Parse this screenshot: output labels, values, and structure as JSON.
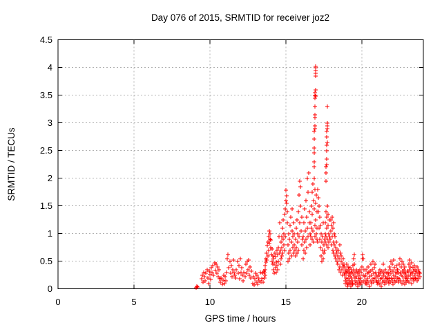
{
  "title": "Day 076 of 2015, SRMTID for receiver joz2",
  "colors": {
    "marker": "#ff0000",
    "grid": "#b0b0b0",
    "axis": "#000000",
    "background": "#ffffff"
  },
  "chart_data": {
    "type": "scatter",
    "title": "Day 076 of 2015, SRMTID for receiver joz2",
    "xlabel": "GPS time / hours",
    "ylabel": "SRMTID / TECUs",
    "xlim": [
      0,
      24.05
    ],
    "ylim": [
      0,
      4.5
    ],
    "x_ticks": [
      0,
      5,
      10,
      15,
      20
    ],
    "x_tick_labels": [
      "0",
      "5",
      "10",
      "15",
      "20"
    ],
    "y_ticks": [
      0,
      0.5,
      1,
      1.5,
      2,
      2.5,
      3,
      3.5,
      4,
      4.5
    ],
    "y_tick_labels": [
      "0",
      "0.5",
      "1",
      "1.5",
      "2",
      "2.5",
      "3",
      "3.5",
      "4",
      "4.5"
    ],
    "grid": true,
    "legend_position": "none",
    "marker": "plus",
    "marker_color": "#ff0000",
    "series_name": "SRMTID",
    "data_summary": {
      "time_range_hours": [
        9.1,
        23.85
      ],
      "quiet_band_level": 0.25,
      "main_peak": {
        "x": 16.95,
        "y": 4.0
      },
      "secondary_peak": {
        "x": 17.7,
        "y": 3.3
      }
    },
    "clusters": [
      {
        "x0": 9.1,
        "dx": 0.04,
        "y": [
          0.02,
          0.05,
          0.03
        ]
      },
      {
        "x0": 9.45,
        "dx": 0.05,
        "y": [
          0.18,
          0.25,
          0.12,
          0.3,
          0.22,
          0.15,
          0.28,
          0.35,
          0.2,
          0.1,
          0.32,
          0.26,
          0.17,
          0.38,
          0.3,
          0.42,
          0.25,
          0.47,
          0.33,
          0.45,
          0.28,
          0.4,
          0.22,
          0.35,
          0.18,
          0.12,
          0.2,
          0.08,
          0.16,
          0.25,
          0.1,
          0.22,
          0.15,
          0.3,
          0.55,
          0.62,
          0.38,
          0.5,
          0.28,
          0.42,
          0.22,
          0.35,
          0.52,
          0.3,
          0.25,
          0.2,
          0.35,
          0.5,
          0.28,
          0.42,
          0.18,
          0.55,
          0.3,
          0.38,
          0.25,
          0.15,
          0.3,
          0.22,
          0.45,
          0.28,
          0.5,
          0.35,
          0.52,
          0.25,
          0.4,
          0.2,
          0.32,
          0.1,
          0.22,
          0.07,
          0.18,
          0.28,
          0.12,
          0.25,
          0.08,
          0.2,
          0.15,
          0.3,
          0.12,
          0.18,
          0.28,
          0.12,
          0.32,
          0.2,
          0.25
        ]
      },
      {
        "x0": 13.6,
        "dx": 0.025,
        "y": [
          0.3,
          0.42,
          0.35,
          0.55,
          0.48,
          0.65,
          0.52,
          0.78,
          0.6,
          0.85,
          0.7,
          0.95,
          0.82,
          1.05,
          0.9,
          1.0,
          0.75,
          0.88,
          0.62,
          0.72,
          0.5,
          0.6,
          0.45
        ]
      },
      {
        "x0": 14.175,
        "dx": 0.025,
        "y": [
          0.35,
          0.55,
          0.28,
          0.45,
          0.65,
          0.38,
          0.58,
          0.3,
          0.48,
          0.7,
          0.42,
          0.62,
          0.35,
          0.75,
          0.5,
          0.95,
          0.65,
          1.2
        ]
      },
      {
        "x0": 14.62,
        "dx": 0.022,
        "y": [
          0.45,
          0.7,
          0.55,
          0.85,
          0.6,
          0.95,
          0.75,
          1.1,
          0.65,
          0.9,
          1.25,
          0.8,
          1.0,
          0.7,
          1.35,
          0.95,
          1.45,
          1.6,
          1.78,
          1.55,
          1.68,
          1.4,
          1.2
        ]
      },
      {
        "x0": 15.12,
        "dx": 0.025,
        "y": [
          0.5,
          0.8,
          0.65,
          1.0,
          0.55,
          0.9,
          1.15,
          0.7,
          1.3,
          0.85,
          0.6,
          1.05,
          1.45,
          0.75,
          0.95,
          0.65,
          1.2,
          0.8,
          1.0,
          0.7
        ]
      },
      {
        "x0": 15.62,
        "dx": 0.024,
        "y": [
          0.6,
          0.9,
          0.75,
          1.1,
          0.65,
          1.25,
          0.85,
          1.0,
          0.7,
          1.4,
          0.95,
          1.7,
          1.2,
          1.95,
          1.85,
          1.5,
          1.05,
          0.8,
          1.3,
          0.9
        ]
      },
      {
        "x0": 16.12,
        "dx": 0.024,
        "y": [
          0.55,
          0.95,
          0.7,
          1.2,
          0.85,
          1.45,
          0.65,
          1.05,
          1.6,
          0.9,
          1.3,
          0.75,
          2.0,
          1.1,
          1.75,
          0.95,
          2.1,
          1.4,
          1.2,
          1.0
        ]
      },
      {
        "x0": 16.61,
        "dx": 0.02,
        "y": [
          0.8,
          1.2,
          0.95,
          1.5,
          1.1,
          1.75,
          0.9,
          1.35,
          1.9,
          1.05,
          1.6,
          0.85,
          1.45,
          2.0,
          1.15,
          1.8,
          0.95,
          1.55,
          1.25,
          1.0,
          1.7,
          0.9,
          1.4,
          1.1,
          0.85
        ]
      },
      {
        "x0": 16.85,
        "dx": 0.006,
        "y": [
          2.2,
          2.3,
          2.45,
          2.3,
          2.55,
          2.7,
          2.85,
          2.95,
          3.1,
          3.15,
          2.9,
          3.3,
          3.45,
          3.5,
          3.55,
          3.48,
          3.6,
          3.85,
          3.95,
          4.0,
          4.02,
          3.9
        ]
      },
      {
        "x0": 17.11,
        "dx": 0.022,
        "y": [
          1.8,
          1.4,
          1.65,
          1.1,
          1.5,
          0.9,
          1.3,
          0.75,
          1.15,
          0.6,
          1.0,
          0.85,
          0.5,
          0.95,
          0.7,
          1.2,
          0.55,
          0.8,
          0.65,
          0.9
        ]
      },
      {
        "x0": 17.56,
        "dx": 0.018,
        "y": [
          0.7,
          1.0,
          0.85,
          1.2,
          0.95,
          1.4,
          1.1,
          0.8,
          1.3,
          1.5,
          0.9,
          1.15,
          0.75,
          1.35,
          1.0,
          0.85,
          1.25,
          0.95
        ]
      },
      {
        "x0": 17.64,
        "dx": 0.008,
        "y": [
          1.95,
          2.1,
          2.2,
          2.35,
          2.25,
          2.5,
          2.6,
          2.75,
          2.85,
          2.95,
          3.0,
          2.9,
          3.3,
          2.65
        ]
      },
      {
        "x0": 17.92,
        "dx": 0.022,
        "y": [
          0.9,
          1.25,
          1.05,
          0.8,
          1.15,
          0.95,
          1.3,
          0.7,
          1.1,
          0.85,
          1.2,
          0.65,
          1.0,
          0.8,
          0.6,
          0.95,
          0.75,
          0.55,
          0.85,
          0.65,
          0.5,
          0.7
        ]
      },
      {
        "x0": 18.41,
        "dx": 0.025,
        "y": [
          0.6,
          0.45,
          0.7,
          0.35,
          0.55,
          0.8,
          0.4,
          0.65,
          0.3,
          0.5,
          0.6,
          0.35,
          0.45,
          0.25,
          0.55,
          0.4,
          0.3,
          0.45
        ]
      },
      {
        "x0": 18.86,
        "dx": 0.018,
        "y": [
          0.25,
          0.4,
          0.15,
          0.3,
          0.1,
          0.35,
          0.2,
          0.45,
          0.12,
          0.28,
          0.05,
          0.32,
          0.18,
          0.4,
          0.08,
          0.25,
          0.35,
          0.15,
          0.3,
          0.1,
          0.22,
          0.38,
          0.05,
          0.28,
          0.12,
          0.35,
          0.2,
          0.08,
          0.3,
          0.15,
          0.42,
          0.1,
          0.25,
          0.55,
          0.35,
          0.62,
          0.3,
          0.45,
          0.2
        ]
      },
      {
        "x0": 19.56,
        "dx": 0.025,
        "y": [
          0.15,
          0.3,
          0.08,
          0.22,
          0.35,
          0.12,
          0.28,
          0.05,
          0.18,
          0.32,
          0.1,
          0.25,
          0.15,
          0.35,
          0.08,
          0.2,
          0.3,
          0.12,
          0.4,
          0.55,
          0.62,
          0.25,
          0.55,
          0.15,
          0.35,
          0.22
        ]
      },
      {
        "x0": 20.21,
        "dx": 0.028,
        "y": [
          0.1,
          0.25,
          0.15,
          0.35,
          0.08,
          0.28,
          0.18,
          0.4,
          0.12,
          0.3,
          0.05,
          0.22,
          0.32,
          0.15,
          0.45,
          0.1,
          0.25,
          0.35,
          0.18,
          0.5,
          0.28,
          0.12,
          0.38,
          0.2,
          0.45,
          0.3,
          0.15,
          0.25
        ]
      },
      {
        "x0": 21.0,
        "dx": 0.028,
        "y": [
          0.12,
          0.22,
          0.08,
          0.3,
          0.15,
          0.25,
          0.1,
          0.35,
          0.18,
          0.28,
          0.05,
          0.2,
          0.32,
          0.12,
          0.45,
          0.25,
          0.15,
          0.3,
          0.08,
          0.22,
          0.35,
          0.18,
          0.12,
          0.28,
          0.2
        ]
      },
      {
        "x0": 21.71,
        "dx": 0.025,
        "y": [
          0.15,
          0.3,
          0.1,
          0.25,
          0.4,
          0.18,
          0.35,
          0.12,
          0.5,
          0.28,
          0.2,
          0.45,
          0.15,
          0.32,
          0.08,
          0.25,
          0.52,
          0.18,
          0.38,
          0.12,
          0.3,
          0.22,
          0.42,
          0.15,
          0.28,
          0.35
        ]
      },
      {
        "x0": 22.36,
        "dx": 0.024,
        "y": [
          0.2,
          0.35,
          0.12,
          0.28,
          0.45,
          0.18,
          0.55,
          0.3,
          0.15,
          0.4,
          0.25,
          0.5,
          0.1,
          0.32,
          0.22,
          0.45,
          0.15,
          0.35,
          0.28,
          0.08,
          0.4,
          0.2,
          0.3,
          0.12,
          0.25,
          0.18,
          0.32
        ]
      },
      {
        "x0": 23.01,
        "dx": 0.024,
        "y": [
          0.15,
          0.3,
          0.22,
          0.45,
          0.12,
          0.35,
          0.52,
          0.25,
          0.4,
          0.18,
          0.3,
          0.47,
          0.1,
          0.28,
          0.38,
          0.2,
          0.32,
          0.15,
          0.42,
          0.25,
          0.35,
          0.18,
          0.28
        ]
      },
      {
        "x0": 23.56,
        "dx": 0.03,
        "y": [
          0.2,
          0.32,
          0.15,
          0.4,
          0.25,
          0.35,
          0.18,
          0.3,
          0.22,
          0.28
        ]
      }
    ]
  }
}
